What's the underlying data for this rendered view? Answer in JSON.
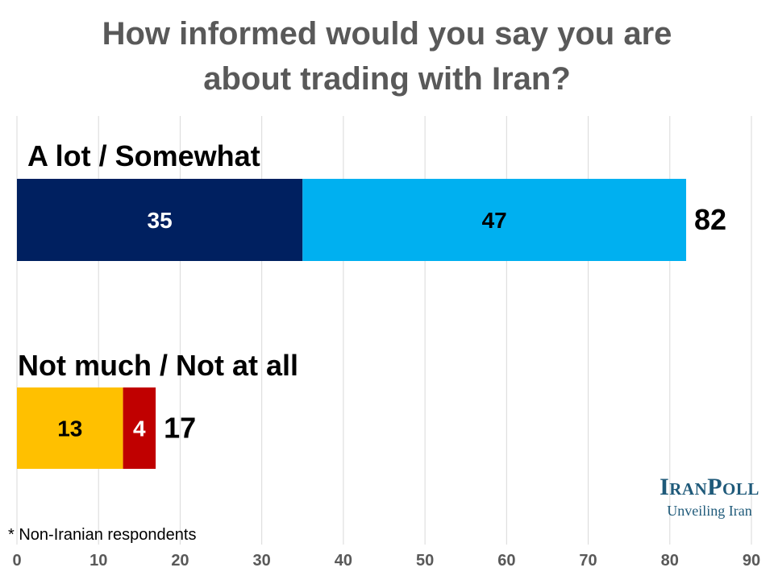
{
  "title_lines": [
    "How informed would you say you are",
    "about trading with Iran?"
  ],
  "footnote": "* Non-Iranian respondents",
  "logo": {
    "name": "IranPoll",
    "tagline": "Unveiling Iran"
  },
  "colors": {
    "a_lot": "#002060",
    "somewhat": "#00b0f0",
    "not_much": "#ffc000",
    "not_at_all": "#c00000",
    "grid": "#d9d9d9"
  },
  "chart_data": {
    "type": "bar",
    "orientation": "horizontal",
    "stacked": true,
    "xlim": [
      0,
      90
    ],
    "x_ticks": [
      0,
      10,
      20,
      30,
      40,
      50,
      60,
      70,
      80,
      90
    ],
    "grid": true,
    "groups": [
      {
        "label": "A lot / Somewhat",
        "total": 82,
        "segments": [
          {
            "value": 35,
            "color": "#002060",
            "label_color": "#ffffff"
          },
          {
            "value": 47,
            "color": "#00b0f0",
            "label_color": "#000000"
          }
        ]
      },
      {
        "label": "Not much / Not at all",
        "total": 17,
        "segments": [
          {
            "value": 13,
            "color": "#ffc000",
            "label_color": "#000000"
          },
          {
            "value": 4,
            "color": "#c00000",
            "label_color": "#ffffff"
          }
        ]
      }
    ]
  }
}
